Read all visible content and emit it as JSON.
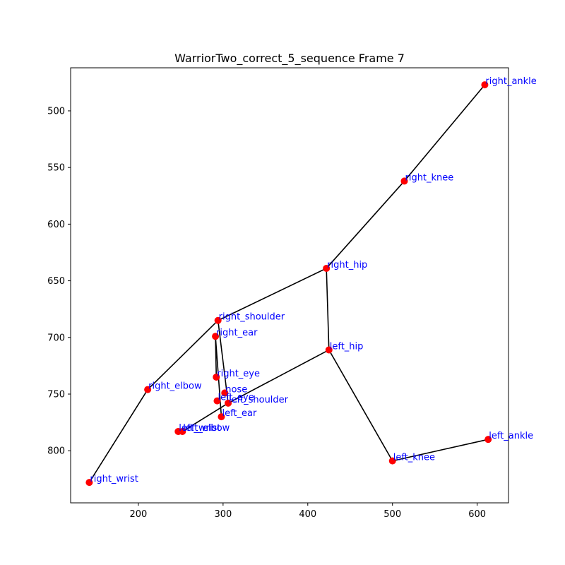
{
  "chart_data": {
    "type": "scatter",
    "title": "WarriorTwo_correct_5_sequence Frame 7",
    "xlabel": "",
    "ylabel": "",
    "xlim": [
      120,
      637
    ],
    "ylim": [
      846,
      462
    ],
    "y_inverted": true,
    "grid": false,
    "xticks": [
      200,
      300,
      400,
      500,
      600
    ],
    "yticks": [
      500,
      550,
      600,
      650,
      700,
      750,
      800
    ],
    "colors": {
      "point": "#ff0000",
      "label": "#0000ff",
      "line": "#000000"
    },
    "keypoints": [
      {
        "name": "nose",
        "x": 302,
        "y": 749
      },
      {
        "name": "left_eye",
        "x": 293,
        "y": 756
      },
      {
        "name": "right_eye",
        "x": 292,
        "y": 735
      },
      {
        "name": "left_ear",
        "x": 298,
        "y": 770
      },
      {
        "name": "right_ear",
        "x": 291,
        "y": 699
      },
      {
        "name": "left_shoulder",
        "x": 306,
        "y": 758
      },
      {
        "name": "right_shoulder",
        "x": 294,
        "y": 685
      },
      {
        "name": "left_elbow",
        "x": 252,
        "y": 783
      },
      {
        "name": "right_elbow",
        "x": 211,
        "y": 746
      },
      {
        "name": "left_wrist",
        "x": 247,
        "y": 783
      },
      {
        "name": "right_wrist",
        "x": 142,
        "y": 828
      },
      {
        "name": "left_hip",
        "x": 425,
        "y": 711
      },
      {
        "name": "right_hip",
        "x": 422,
        "y": 639
      },
      {
        "name": "left_knee",
        "x": 500,
        "y": 809
      },
      {
        "name": "right_knee",
        "x": 514,
        "y": 562
      },
      {
        "name": "left_ankle",
        "x": 613,
        "y": 790
      },
      {
        "name": "right_ankle",
        "x": 609,
        "y": 477
      }
    ],
    "connections": [
      [
        "right_wrist",
        "right_elbow"
      ],
      [
        "right_elbow",
        "right_shoulder"
      ],
      [
        "right_shoulder",
        "right_hip"
      ],
      [
        "right_hip",
        "right_knee"
      ],
      [
        "right_knee",
        "right_ankle"
      ],
      [
        "right_hip",
        "left_hip"
      ],
      [
        "left_hip",
        "left_knee"
      ],
      [
        "left_knee",
        "left_ankle"
      ],
      [
        "left_hip",
        "left_shoulder"
      ],
      [
        "left_shoulder",
        "left_elbow"
      ],
      [
        "left_elbow",
        "left_wrist"
      ],
      [
        "right_shoulder",
        "left_shoulder"
      ],
      [
        "right_ear",
        "right_eye"
      ],
      [
        "right_ear",
        "left_ear"
      ]
    ]
  }
}
